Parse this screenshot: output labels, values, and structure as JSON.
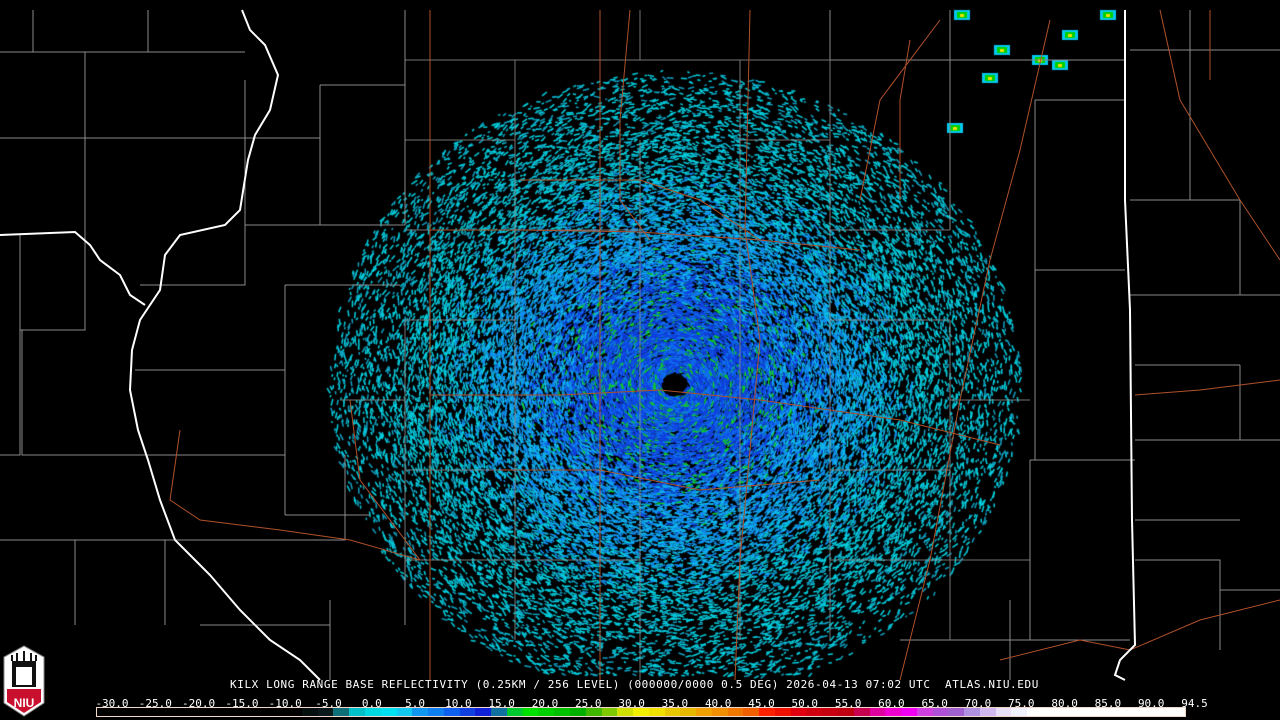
{
  "title": "KILX LONG RANGE BASE REFLECTIVITY (0.25KM / 256 LEVEL) (000000/0000 0.5 DEG) 2026-04-13 07:02 UTC  ATLAS.NIU.EDU",
  "logo_text": "NIU",
  "colorbar": {
    "labels": [
      "-30.0",
      "-25.0",
      "-20.0",
      "-15.0",
      "-10.0",
      "-5.0",
      "0.0",
      "5.0",
      "10.0",
      "15.0",
      "20.0",
      "25.0",
      "30.0",
      "35.0",
      "40.0",
      "45.0",
      "50.0",
      "55.0",
      "60.0",
      "65.0",
      "70.0",
      "75.0",
      "80.0",
      "85.0",
      "90.0",
      "94.5"
    ],
    "colors": [
      "#000000",
      "#000000",
      "#000000",
      "#000000",
      "#000000",
      "#000000",
      "#000000",
      "#000000",
      "#000000",
      "#000000",
      "#000000",
      "#000000",
      "#000000",
      "#050f10",
      "#0a1a1c",
      "#0f6f78",
      "#00c0c8",
      "#00d8e0",
      "#00e0f0",
      "#10c8f0",
      "#1098f0",
      "#1080f0",
      "#1060f0",
      "#1040e0",
      "#1020d8",
      "#1070a0",
      "#00c830",
      "#00e000",
      "#00d000",
      "#00c000",
      "#00b000",
      "#40b800",
      "#80c800",
      "#d0e000",
      "#f0f000",
      "#f0e000",
      "#e8c800",
      "#e8b800",
      "#f0a000",
      "#f09000",
      "#f07800",
      "#f06000",
      "#ff2000",
      "#f01000",
      "#e00010",
      "#d00010",
      "#c80010",
      "#c00010",
      "#c80050",
      "#e000a0",
      "#f000d0",
      "#f000f0",
      "#d040e0",
      "#b050d8",
      "#a060d0",
      "#b090e0",
      "#d0b8f0",
      "#e8e0f8",
      "#f0f0ff",
      "#ffffff",
      "#ffffff",
      "#ffffff",
      "#ffffff",
      "#ffffff",
      "#ffffff",
      "#ffffff",
      "#ffffff",
      "#ffffff",
      "#ffffff"
    ]
  },
  "map": {
    "radar_site": "KILX",
    "county_border_color": "#8a8a8a",
    "state_border_color": "#ffffff",
    "highway_color": "#c05a30"
  }
}
